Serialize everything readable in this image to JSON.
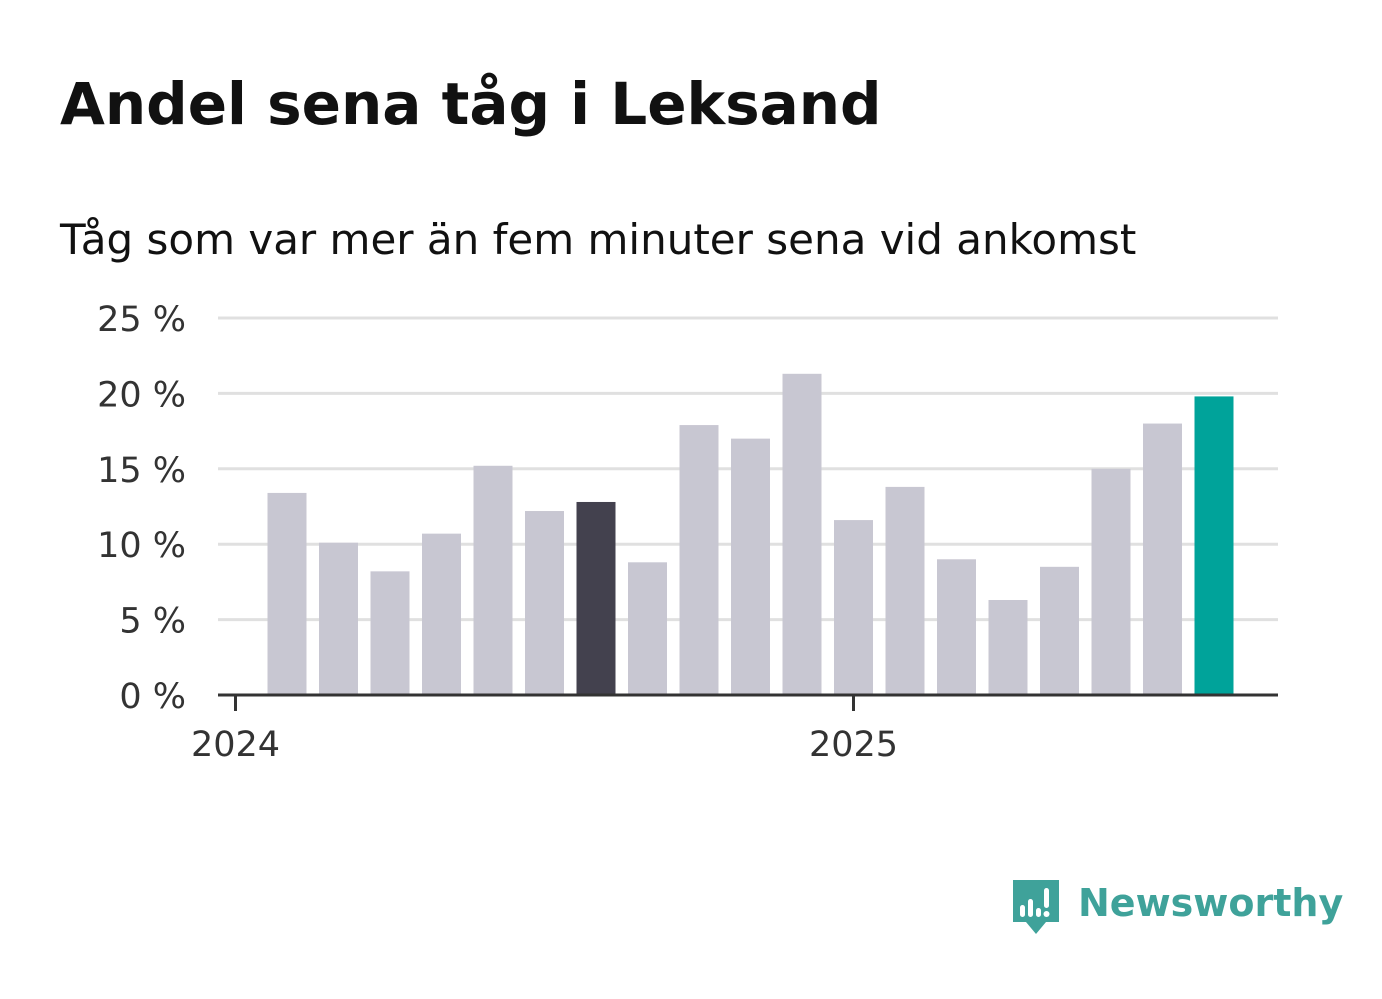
{
  "title": "Andel sena tåg i Leksand",
  "subtitle": "Tåg som var mer än fem minuter sena vid ankomst",
  "brand": {
    "name": "Newsworthy",
    "icon": "newsworthy-bar-chart-speech-bubble-icon",
    "color": "#3fa29a"
  },
  "chart_data": {
    "type": "bar",
    "title": "Andel sena tåg i Leksand",
    "subtitle": "Tåg som var mer än fem minuter sena vid ankomst",
    "xlabel": "",
    "ylabel": "",
    "ylim": [
      0,
      25
    ],
    "y_ticks": [
      0,
      5,
      10,
      15,
      20,
      25
    ],
    "y_tick_labels": [
      "0 %",
      "5 %",
      "10 %",
      "15 %",
      "20 %",
      "25 %"
    ],
    "x_tick_labels": [
      {
        "label": "2024",
        "category": "2024-01"
      },
      {
        "label": "2025",
        "category": "2025-01"
      }
    ],
    "grid": true,
    "legend": "none",
    "categories": [
      "2024-02",
      "2024-03",
      "2024-04",
      "2024-05",
      "2024-06",
      "2024-07",
      "2024-08",
      "2024-09",
      "2024-10",
      "2024-11",
      "2024-12",
      "2025-01",
      "2025-02",
      "2025-03",
      "2025-04",
      "2025-05",
      "2025-06",
      "2025-07",
      "2025-08"
    ],
    "values": [
      13.4,
      10.1,
      8.2,
      10.7,
      15.2,
      12.2,
      12.8,
      8.8,
      17.9,
      17.0,
      21.3,
      11.6,
      13.8,
      9.0,
      6.3,
      8.5,
      15.0,
      18.0,
      19.8
    ],
    "colors": {
      "default": "#c8c7d2",
      "highlight_same_month_last_year": "#43414e",
      "highlight_latest": "#00a39a",
      "axis": "#333333",
      "grid": "#e0e0e0"
    },
    "highlights": {
      "2024-08": "highlight_same_month_last_year",
      "2025-08": "highlight_latest"
    }
  }
}
